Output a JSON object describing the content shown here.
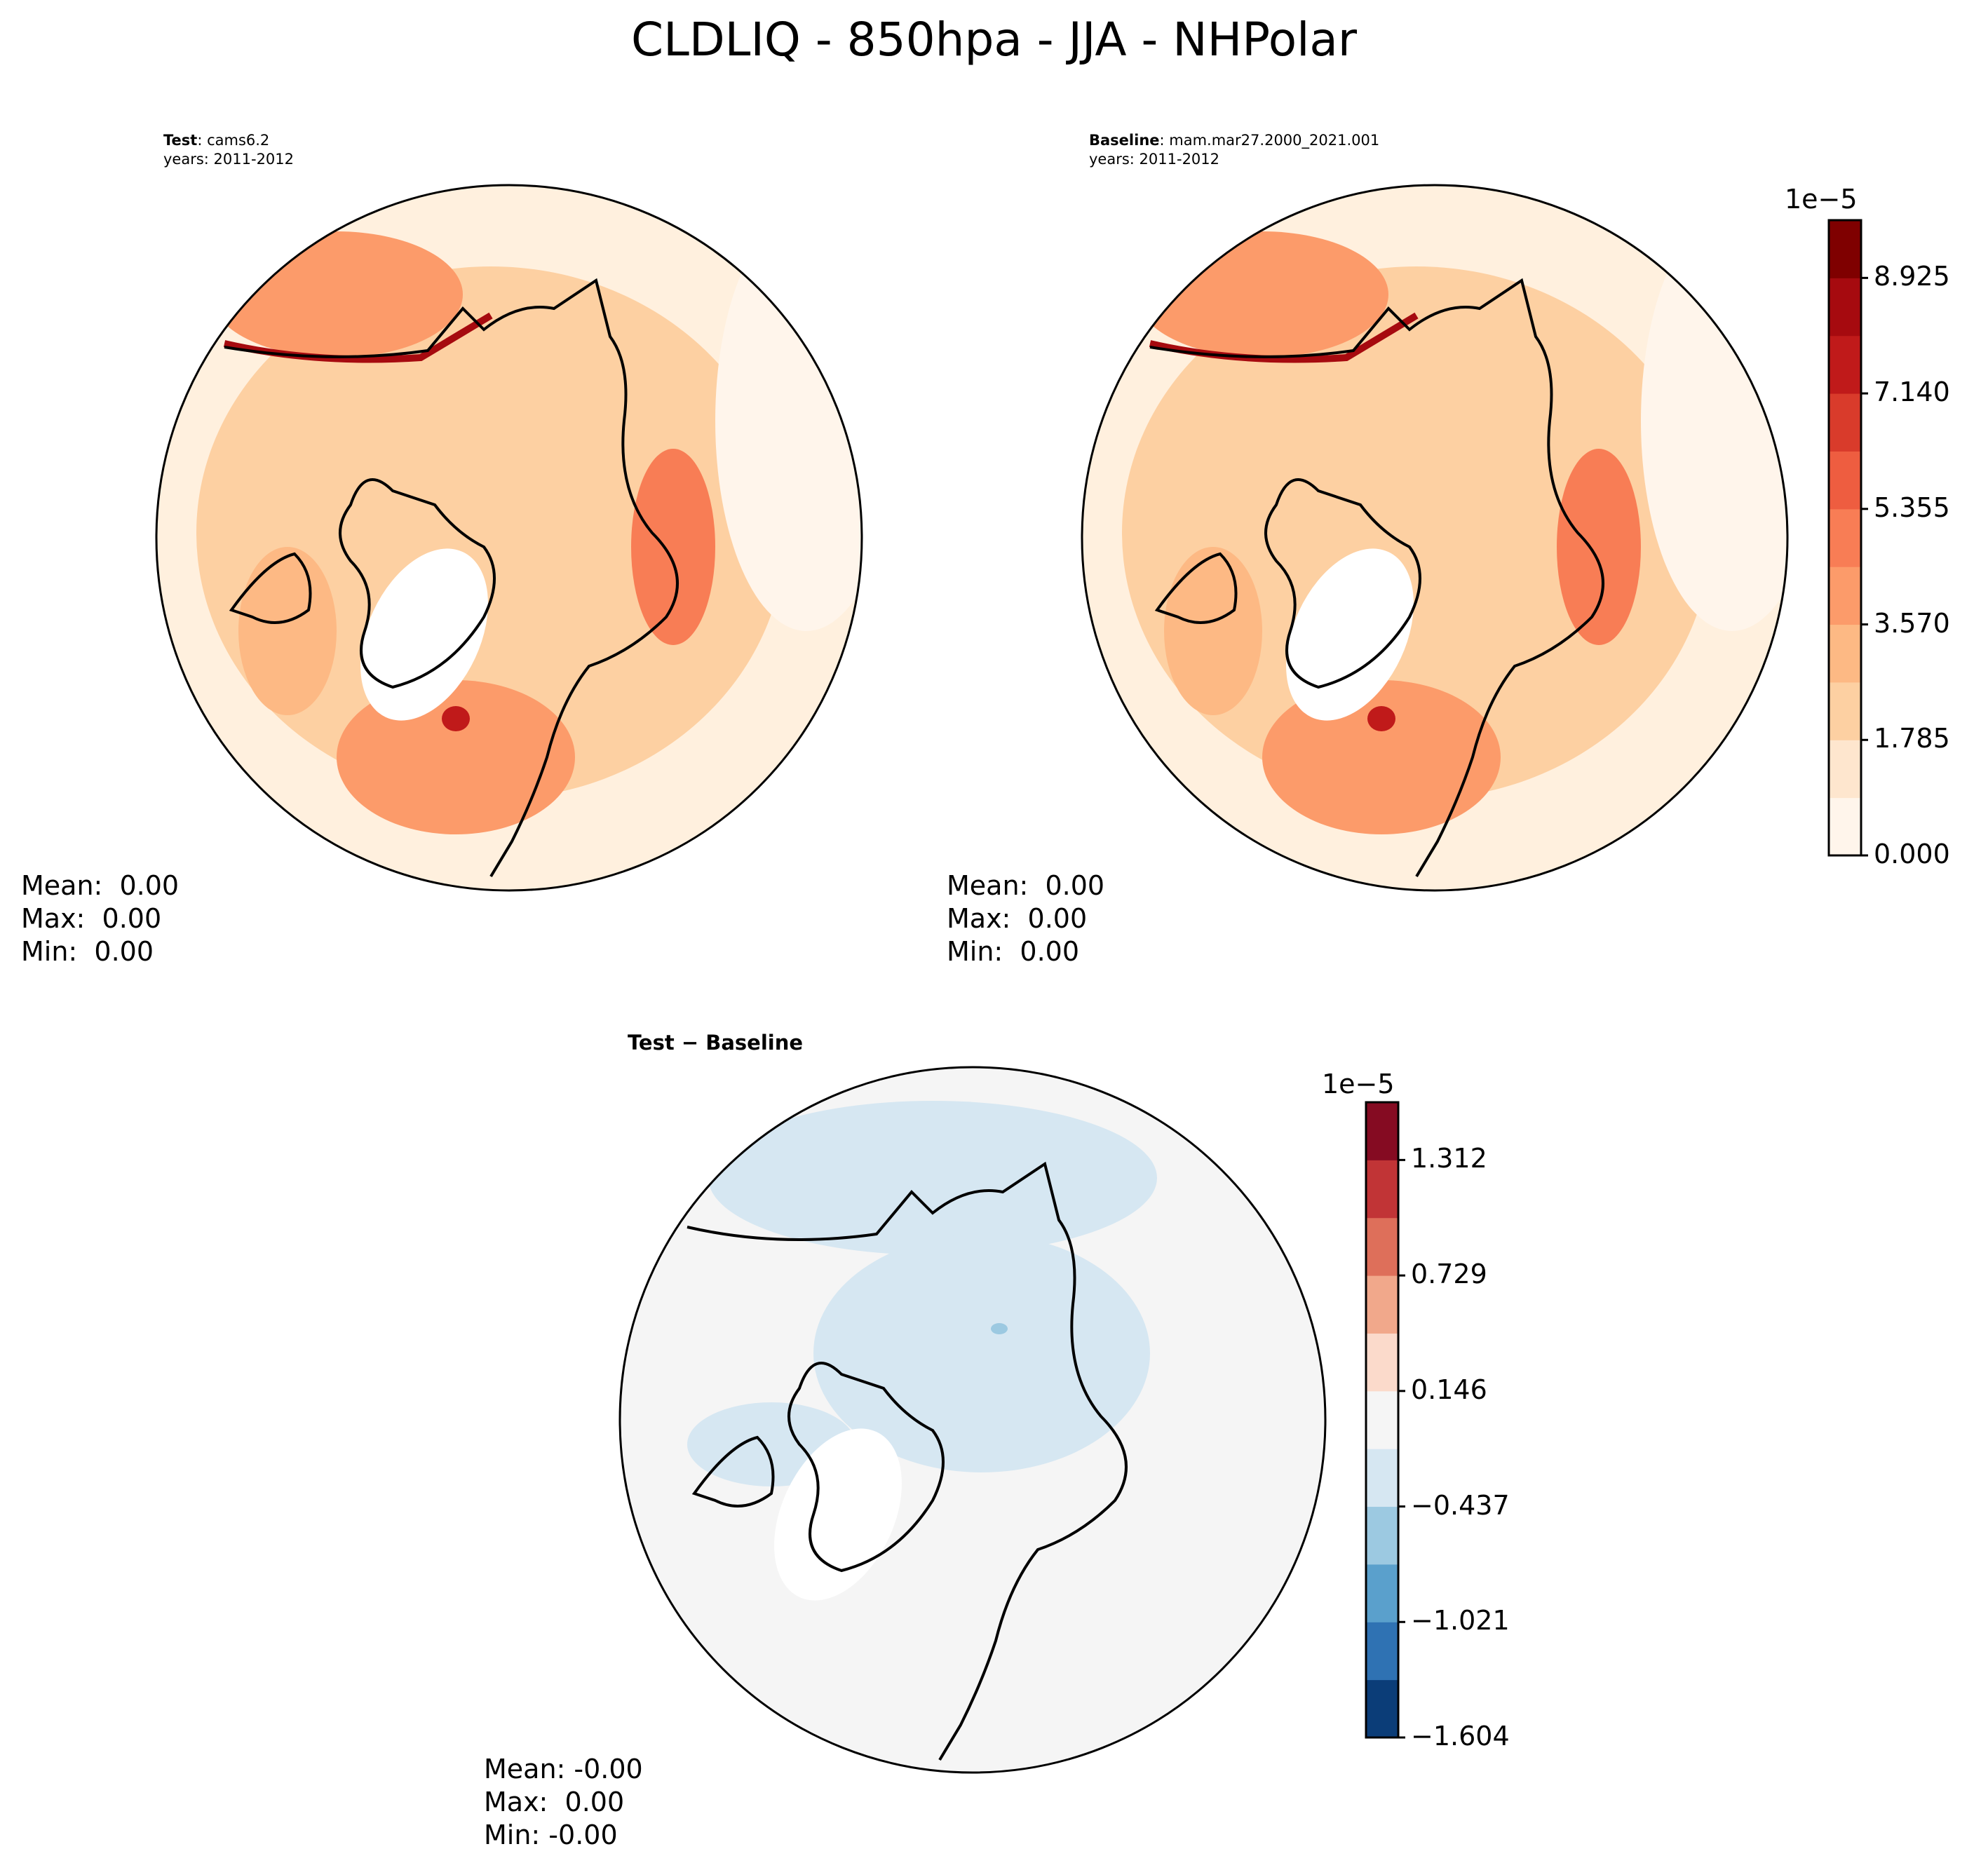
{
  "title": "CLDLIQ - 850hpa - JJA - NHPolar",
  "panels": [
    {
      "id": "test",
      "label": "Test",
      "case": ": cams6.2",
      "years": "years: 2011-2012",
      "stats": {
        "mean": "Mean:  0.00",
        "max": "Max:  0.00",
        "min": "Min:  0.00"
      }
    },
    {
      "id": "baseline",
      "label": "Baseline",
      "case": ": mam.mar27.2000_2021.001",
      "years": "years: 2011-2012",
      "stats": {
        "mean": "Mean:  0.00",
        "max": "Max:  0.00",
        "min": "Min:  0.00"
      }
    },
    {
      "id": "diff",
      "label": "Test − Baseline",
      "stats": {
        "mean": "Mean: -0.00",
        "max": "Max:  0.00",
        "min": "Min: -0.00"
      }
    }
  ],
  "colorbars": [
    {
      "id": "abs",
      "exponent": "1e−5",
      "ticks": [
        "0.000",
        "1.785",
        "3.570",
        "5.355",
        "7.140",
        "8.925"
      ],
      "colors": [
        "#fff5eb",
        "#fee6ce",
        "#fdd0a2",
        "#fdb984",
        "#fc9b6a",
        "#f87d55",
        "#ee5d40",
        "#d93b2b",
        "#c01a1a",
        "#a60a0f",
        "#7f0000"
      ]
    },
    {
      "id": "diff",
      "exponent": "1e−5",
      "ticks": [
        "−1.604",
        "−1.021",
        "−0.437",
        "0.146",
        "0.729",
        "1.312"
      ],
      "colors": [
        "#0b3d78",
        "#2f72b3",
        "#5aa0cc",
        "#9cc9e1",
        "#d6e7f2",
        "#f5f5f5",
        "#fbdacb",
        "#f1a88b",
        "#de6f5a",
        "#c13436",
        "#850b22"
      ]
    }
  ]
}
